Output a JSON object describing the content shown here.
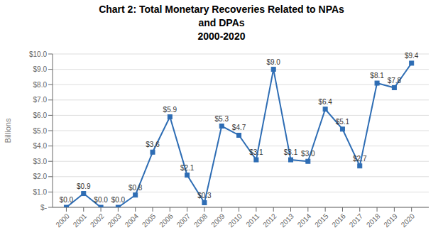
{
  "chart_data": {
    "type": "line",
    "title": "Chart 2: Total Monetary Recoveries Related to NPAs\nand DPAs\n2000-2020",
    "x": [
      2000,
      2001,
      2002,
      2003,
      2004,
      2005,
      2006,
      2007,
      2008,
      2009,
      2010,
      2011,
      2012,
      2013,
      2014,
      2015,
      2016,
      2017,
      2018,
      2019,
      2020
    ],
    "values": [
      0.0,
      0.9,
      0.0,
      0.0,
      0.8,
      3.6,
      5.9,
      2.1,
      0.3,
      5.3,
      4.7,
      3.1,
      9.0,
      3.1,
      3.0,
      6.4,
      5.1,
      2.7,
      8.1,
      7.8,
      9.4
    ],
    "value_labels": [
      "$0.0",
      "$0.9",
      "$0.0",
      "$0.0",
      "$0.8",
      "$3.6",
      "$5.9",
      "$2.1",
      "$0.3",
      "$5.3",
      "$4.7",
      "$3.1",
      "$9.0",
      "$3.1",
      "$3.0",
      "$6.4",
      "$5.1",
      "$2.7",
      "$8.1",
      "$7.8",
      "$9.4"
    ],
    "data_labels": true,
    "color": "#2E6DB4",
    "marker": "square",
    "ylabel": "Billions",
    "xlim": [
      1999.2,
      2021.0
    ],
    "xticks": [
      2000,
      2001,
      2002,
      2003,
      2004,
      2005,
      2006,
      2007,
      2008,
      2009,
      2010,
      2011,
      2012,
      2013,
      2014,
      2015,
      2016,
      2017,
      2018,
      2019,
      2020
    ],
    "ylim": [
      0,
      10.0
    ],
    "yticks": [
      {
        "value": 0,
        "label": "$-"
      },
      {
        "value": 1,
        "label": "$1.0"
      },
      {
        "value": 2,
        "label": "$2.0"
      },
      {
        "value": 3,
        "label": "$3.0"
      },
      {
        "value": 4,
        "label": "$4.0"
      },
      {
        "value": 5,
        "label": "$5.0"
      },
      {
        "value": 6,
        "label": "$6.0"
      },
      {
        "value": 7,
        "label": "$7.0"
      },
      {
        "value": 8,
        "label": "$8.0"
      },
      {
        "value": 9,
        "label": "$9.0"
      },
      {
        "value": 10,
        "label": "$10.0"
      }
    ],
    "grid": true
  }
}
